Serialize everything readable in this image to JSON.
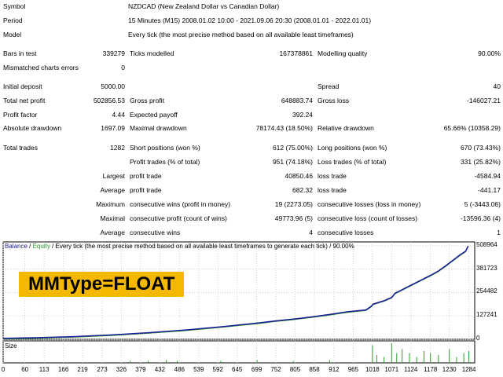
{
  "report": {
    "symbol": {
      "label": "Symbol",
      "value": "NZDCAD (New Zealand Dollar vs Canadian Dollar)"
    },
    "period": {
      "label": "Period",
      "value": "15 Minutes (M15) 2008.01.02 10:00 - 2021.09.06 20:30 (2008.01.01 - 2022.01.01)"
    },
    "model": {
      "label": "Model",
      "value": "Every tick (the most precise method based on all available least timeframes)"
    },
    "bars_in_test": {
      "label": "Bars in test",
      "value": "339279"
    },
    "ticks_modelled": {
      "label": "Ticks modelled",
      "value": "167378861"
    },
    "modelling_quality": {
      "label": "Modelling quality",
      "value": "90.00%"
    },
    "mismatched": {
      "label": "Mismatched charts errors",
      "value": "0"
    },
    "initial_deposit": {
      "label": "Initial deposit",
      "value": "5000.00"
    },
    "spread": {
      "label": "Spread",
      "value": "40"
    },
    "total_net_profit": {
      "label": "Total net profit",
      "value": "502856.53"
    },
    "gross_profit": {
      "label": "Gross profit",
      "value": "648883.74"
    },
    "gross_loss": {
      "label": "Gross loss",
      "value": "-146027.21"
    },
    "profit_factor": {
      "label": "Profit factor",
      "value": "4.44"
    },
    "expected_payoff": {
      "label": "Expected payoff",
      "value": "392.24"
    },
    "absolute_drawdown": {
      "label": "Absolute drawdown",
      "value": "1697.09"
    },
    "maximal_drawdown": {
      "label": "Maximal drawdown",
      "value": "78174.43 (18.50%)"
    },
    "relative_drawdown": {
      "label": "Relative drawdown",
      "value": "65.66% (10358.29)"
    },
    "total_trades": {
      "label": "Total trades",
      "value": "1282"
    },
    "short_positions": {
      "label": "Short positions (won %)",
      "value": "612 (75.00%)"
    },
    "long_positions": {
      "label": "Long positions (won %)",
      "value": "670 (73.43%)"
    },
    "profit_trades": {
      "label": "Profit trades (% of total)",
      "value": "951 (74.18%)"
    },
    "loss_trades": {
      "label": "Loss trades (% of total)",
      "value": "331 (25.82%)"
    },
    "largest": {
      "label": "Largest",
      "profit_label": "profit trade",
      "profit_value": "40850.46",
      "loss_label": "loss trade",
      "loss_value": "-4584.94"
    },
    "average": {
      "label": "Average",
      "profit_label": "profit trade",
      "profit_value": "682.32",
      "loss_label": "loss trade",
      "loss_value": "-441.17"
    },
    "maximum": {
      "label": "Maximum",
      "profit_label": "consecutive wins (profit in money)",
      "profit_value": "19 (2273.05)",
      "loss_label": "consecutive losses (loss in money)",
      "loss_value": "5 (-3443.06)"
    },
    "maximal": {
      "label": "Maximal",
      "profit_label": "consecutive profit (count of wins)",
      "profit_value": "49773.96 (5)",
      "loss_label": "consecutive loss (count of losses)",
      "loss_value": "-13596.36 (4)"
    },
    "average2": {
      "label": "Average",
      "profit_label": "consecutive wins",
      "profit_value": "4",
      "loss_label": "consecutive losses",
      "loss_value": "1"
    }
  },
  "graph": {
    "legend_balance": "Balance",
    "legend_sep": " / ",
    "legend_equity": "Equity",
    "legend_rest": " / Every tick (the most precise method based on all available least timeframes to generate each tick) / 90.00%",
    "badge": "MMType=FLOAT",
    "size_label": "Size",
    "balance_color": "#1c1c9c",
    "equity_color": "#2e9e2e",
    "badge_color": "#f5b800"
  },
  "chart_data": {
    "type": "line",
    "title": "",
    "xlabel": "",
    "ylabel": "",
    "x_ticks": [
      "0",
      "60",
      "113",
      "166",
      "219",
      "273",
      "326",
      "379",
      "432",
      "486",
      "539",
      "592",
      "645",
      "699",
      "752",
      "805",
      "858",
      "912",
      "965",
      "1018",
      "1071",
      "1124",
      "1178",
      "1230",
      "1284"
    ],
    "y_ticks": [
      "508964",
      "381723",
      "254482",
      "127241",
      "0"
    ],
    "ylim": [
      0,
      530000
    ],
    "xlim": [
      0,
      1300
    ],
    "grid": true,
    "series": [
      {
        "name": "Balance",
        "x": [
          0,
          100,
          200,
          300,
          400,
          500,
          600,
          700,
          750,
          800,
          850,
          900,
          950,
          1000,
          1015,
          1020,
          1050,
          1071,
          1080,
          1100,
          1130,
          1160,
          1180,
          1200,
          1220,
          1240,
          1260,
          1275,
          1282
        ],
        "y": [
          5000,
          9000,
          15000,
          24000,
          36000,
          50000,
          68000,
          88000,
          100000,
          110000,
          122000,
          135000,
          150000,
          160000,
          180000,
          192000,
          210000,
          228000,
          250000,
          270000,
          300000,
          330000,
          350000,
          372000,
          400000,
          430000,
          460000,
          480000,
          507856
        ]
      }
    ],
    "volume": {
      "name": "Size",
      "x": [
        350,
        400,
        450,
        480,
        600,
        700,
        800,
        900,
        1018,
        1030,
        1050,
        1071,
        1085,
        1100,
        1120,
        1140,
        1160,
        1178,
        1200,
        1230,
        1250,
        1270,
        1284
      ],
      "y": [
        2,
        2,
        3,
        2,
        2,
        3,
        2,
        3,
        18,
        8,
        6,
        20,
        10,
        14,
        10,
        6,
        12,
        10,
        8,
        14,
        6,
        10,
        12
      ]
    }
  }
}
